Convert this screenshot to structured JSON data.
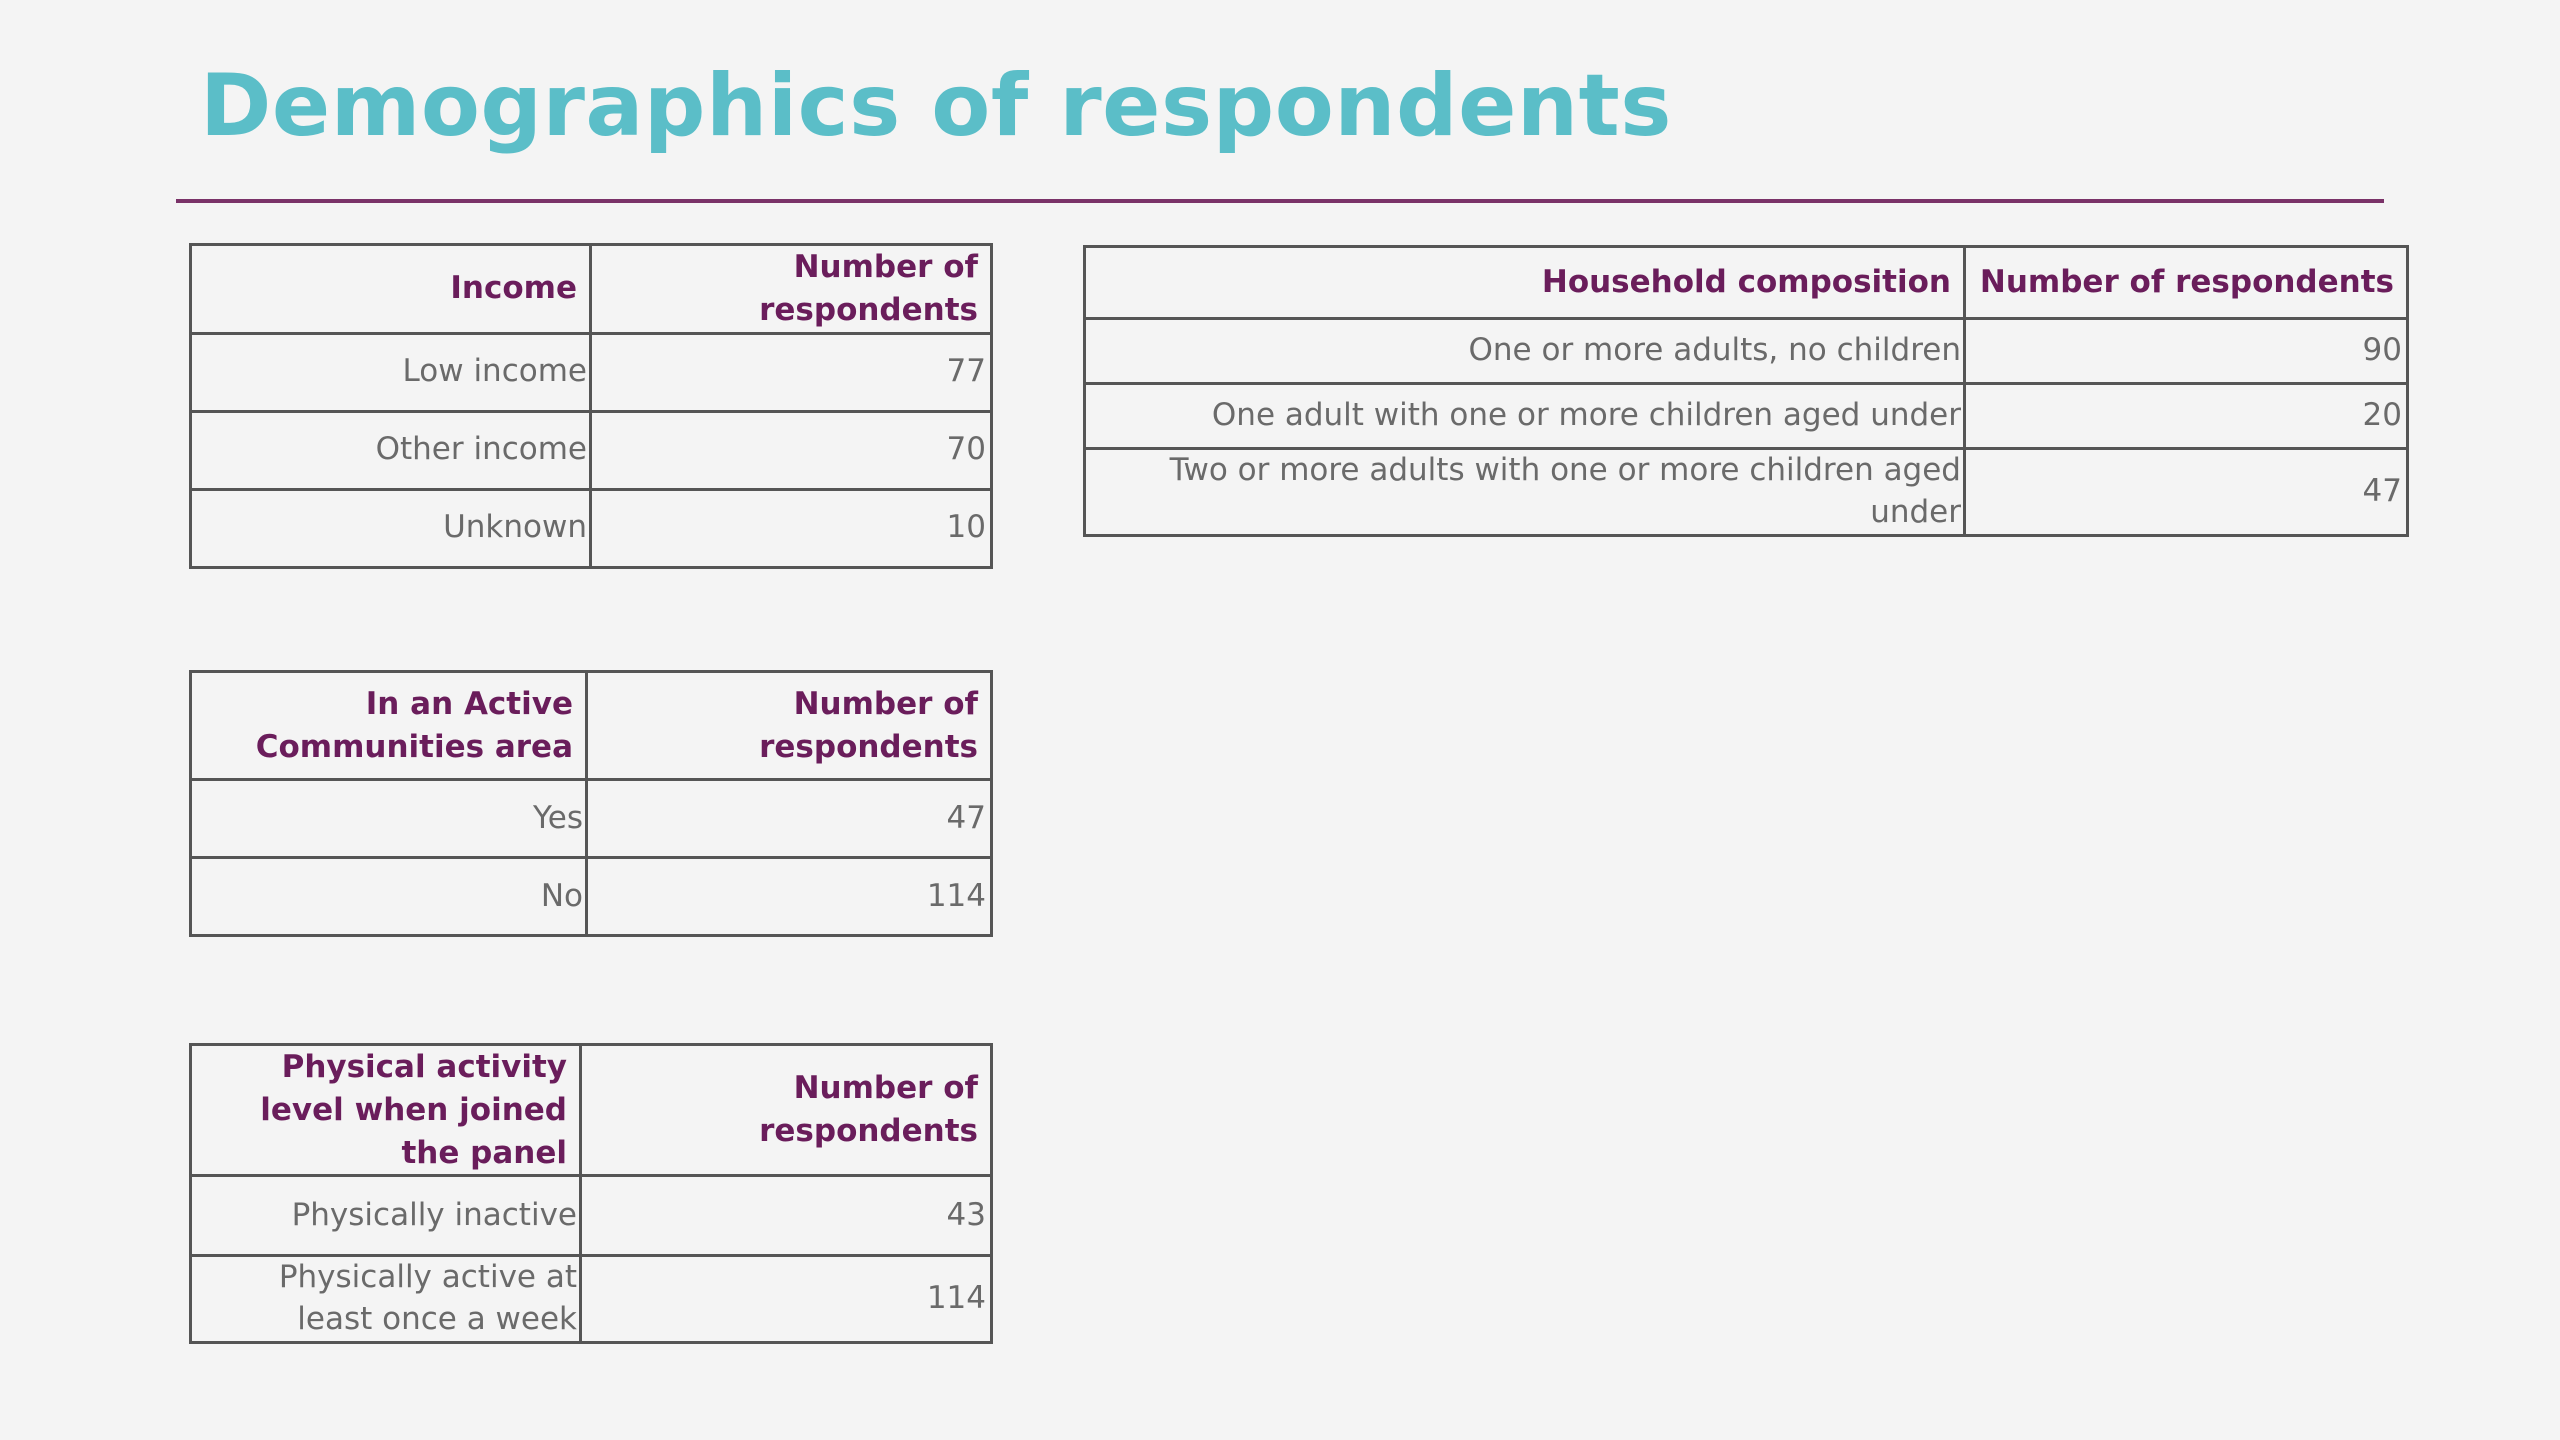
{
  "slide": {
    "title": "Demographics of respondents"
  },
  "income_table": {
    "headers": [
      "Income",
      "Number of respondents"
    ],
    "rows": [
      {
        "label": "Low income",
        "value": "77"
      },
      {
        "label": "Other income",
        "value": "70"
      },
      {
        "label": "Unknown",
        "value": "10"
      }
    ]
  },
  "active_table": {
    "headers": [
      "In an Active Communities area",
      "Number of respondents"
    ],
    "rows": [
      {
        "label": "Yes",
        "value": "47"
      },
      {
        "label": "No",
        "value": "114"
      }
    ]
  },
  "physical_table": {
    "headers": [
      "Physical activity level when joined the panel",
      "Number of respondents"
    ],
    "rows": [
      {
        "label": "Physically inactive",
        "value": "43"
      },
      {
        "label": "Physically active at least once a week",
        "value": "114"
      }
    ]
  },
  "household_table": {
    "headers": [
      "Household composition",
      "Number of respondents"
    ],
    "rows": [
      {
        "label": "One or more adults, no children",
        "value": "90"
      },
      {
        "label": "One adult with one or more children aged under",
        "value": "20"
      },
      {
        "label": "Two or more adults with one or more children aged under",
        "value": "47"
      }
    ]
  },
  "colors": {
    "title": "#5bbec8",
    "accent": "#7a3268",
    "header_text": "#6a1d5b",
    "body_text": "#6a6a6a",
    "border": "#555555",
    "background": "#f4f4f4"
  }
}
